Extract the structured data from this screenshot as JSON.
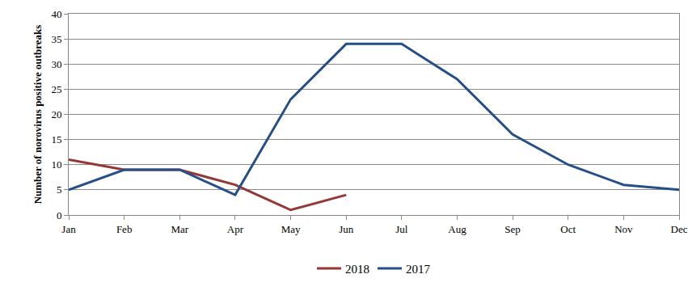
{
  "chart_data": {
    "type": "line",
    "y_label": "Number of norovirus positive outbreaks",
    "categories": [
      "Jan",
      "Feb",
      "Mar",
      "Apr",
      "May",
      "Jun",
      "Jul",
      "Aug",
      "Sep",
      "Oct",
      "Nov",
      "Dec"
    ],
    "series": [
      {
        "name": "2018",
        "color": "#953735",
        "values": [
          11,
          9,
          9,
          6,
          1,
          4,
          null,
          null,
          null,
          null,
          null,
          null
        ]
      },
      {
        "name": "2017",
        "color": "#254f8a",
        "values": [
          5,
          9,
          9,
          4,
          23,
          34,
          34,
          27,
          16,
          10,
          6,
          5
        ]
      }
    ],
    "ylim": [
      0,
      40
    ],
    "yticks": [
      0,
      5,
      10,
      15,
      20,
      25,
      30,
      35,
      40
    ],
    "grid": true,
    "legend": "bottom"
  }
}
